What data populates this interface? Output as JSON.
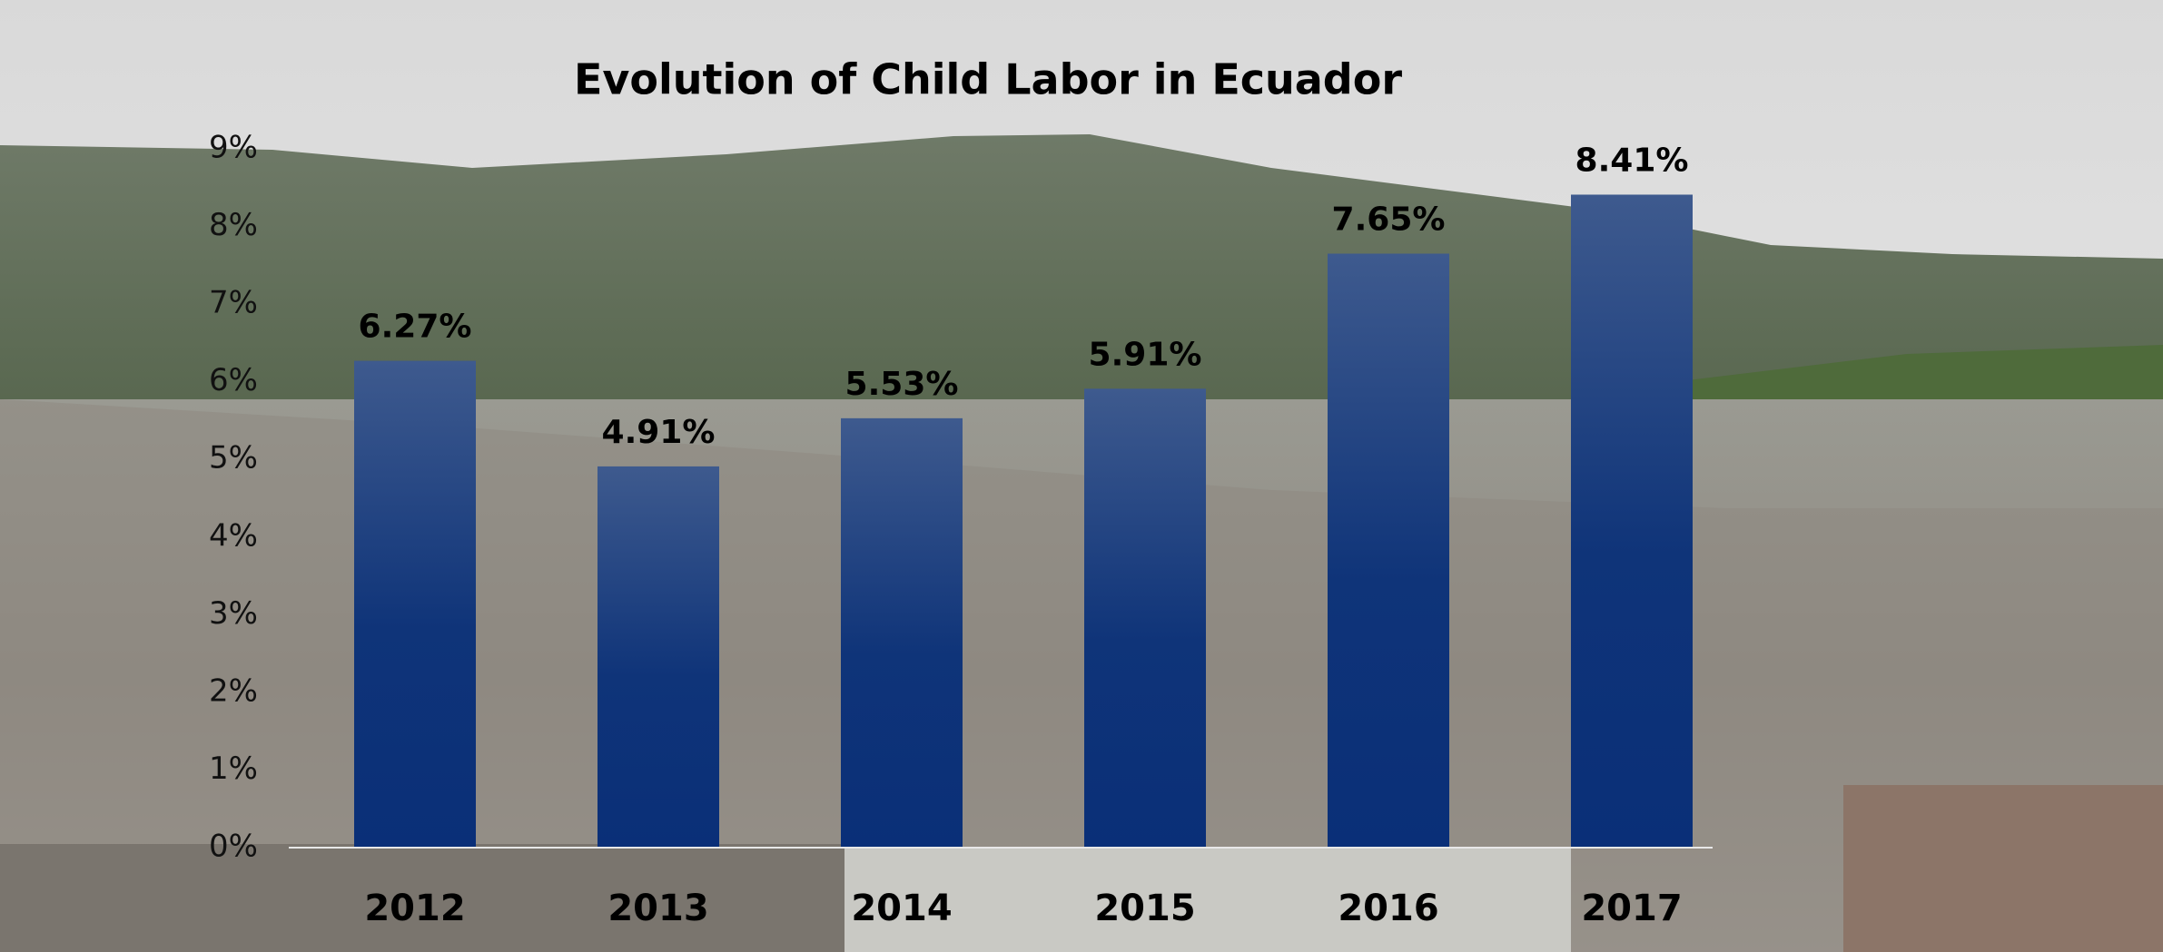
{
  "chart_data": {
    "type": "bar",
    "title": "Evolution of Child Labor in Ecuador",
    "categories": [
      "2012",
      "2013",
      "2014",
      "2015",
      "2016",
      "2017"
    ],
    "values": [
      6.27,
      4.91,
      5.53,
      5.91,
      7.65,
      8.41
    ],
    "value_labels": [
      "6.27%",
      "4.91%",
      "5.53%",
      "5.91%",
      "7.65%",
      "8.41%"
    ],
    "color": "#0a2f78",
    "ylim": [
      0,
      9
    ],
    "yticks": [
      {
        "value": 0,
        "label": "0%"
      },
      {
        "value": 1,
        "label": "1%"
      },
      {
        "value": 2,
        "label": "2%"
      },
      {
        "value": 3,
        "label": "3%"
      },
      {
        "value": 4,
        "label": "4%"
      },
      {
        "value": 5,
        "label": "5%"
      },
      {
        "value": 6,
        "label": "6%"
      },
      {
        "value": 7,
        "label": "7%"
      },
      {
        "value": 8,
        "label": "8%"
      },
      {
        "value": 9,
        "label": "9%"
      }
    ],
    "grid": false
  }
}
